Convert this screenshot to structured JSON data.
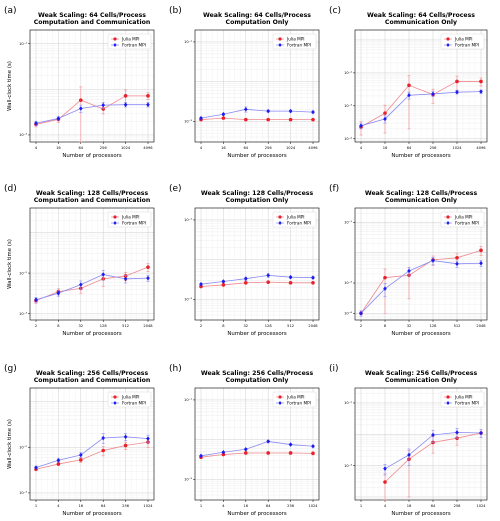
{
  "chart_data": [
    {
      "type": "line",
      "letter": "(a)",
      "title": [
        "Weak Scaling: 64 Cells/Process",
        "Computation and Communication"
      ],
      "xlabel": "Number of processors",
      "ylabel": "Wall-clock time (s)",
      "yscale": "log",
      "ylim": [
        0.0007,
        0.2
      ],
      "yticks": [
        {
          "v": 0.001,
          "label": "10⁻³"
        },
        {
          "v": 0.1,
          "label": "10⁻¹"
        }
      ],
      "x": [
        "4",
        "16",
        "64",
        "256",
        "1024",
        "4096"
      ],
      "grid": true,
      "legend": "top-right",
      "series": [
        {
          "name": "Julia MPI",
          "color": "#e8212b",
          "marker": "circle",
          "values": [
            0.0017,
            0.0022,
            0.0058,
            0.0037,
            0.0072,
            0.0072
          ],
          "errors": [
            0.0002,
            0.0003,
            0.0055,
            0.0008,
            0.0025,
            0.0012
          ]
        },
        {
          "name": "Fortran MPI",
          "color": "#1c1cf0",
          "marker": "diamond",
          "values": [
            0.0018,
            0.0023,
            0.0038,
            0.0045,
            0.0046,
            0.0046
          ],
          "errors": [
            0.0002,
            0.0002,
            0.0007,
            0.0007,
            0.0005,
            0.0005
          ]
        }
      ]
    },
    {
      "type": "line",
      "letter": "(b)",
      "title": [
        "Weak Scaling: 64 Cells/Process",
        "Computation Only"
      ],
      "xlabel": "Number of processors",
      "ylabel": "",
      "yscale": "log",
      "ylim": [
        0.0003,
        0.2
      ],
      "yticks": [
        {
          "v": 0.001,
          "label": "10⁻³"
        },
        {
          "v": 0.1,
          "label": "10⁻¹"
        }
      ],
      "x": [
        "4",
        "16",
        "64",
        "256",
        "1024",
        "4096"
      ],
      "grid": true,
      "legend": "top-right",
      "series": [
        {
          "name": "Julia MPI",
          "color": "#e8212b",
          "marker": "circle",
          "values": [
            0.0011,
            0.0012,
            0.0011,
            0.0011,
            0.0011,
            0.0011
          ],
          "errors": [
            3e-05,
            3e-05,
            3e-05,
            3e-05,
            3e-05,
            3e-05
          ]
        },
        {
          "name": "Fortran MPI",
          "color": "#1c1cf0",
          "marker": "diamond",
          "values": [
            0.0012,
            0.0015,
            0.002,
            0.0018,
            0.0018,
            0.0017
          ],
          "errors": [
            5e-05,
            0.0001,
            0.0003,
            0.0001,
            0.0001,
            0.0001
          ]
        }
      ]
    },
    {
      "type": "line",
      "letter": "(c)",
      "title": [
        "Weak Scaling: 64 Cells/Process",
        "Communication Only"
      ],
      "xlabel": "Number of processors",
      "ylabel": "",
      "yscale": "log",
      "ylim": [
        8e-05,
        0.2
      ],
      "yticks": [
        {
          "v": 0.0001,
          "label": "10⁻⁴"
        },
        {
          "v": 0.001,
          "label": "10⁻³"
        },
        {
          "v": 0.01,
          "label": "10⁻²"
        }
      ],
      "x": [
        "4",
        "16",
        "64",
        "256",
        "1024",
        "4096"
      ],
      "grid": true,
      "legend": "top-right",
      "series": [
        {
          "name": "Julia MPI",
          "color": "#e8212b",
          "marker": "circle",
          "values": [
            0.00023,
            0.0006,
            0.0042,
            0.0022,
            0.0055,
            0.0055
          ],
          "errors": [
            0.0001,
            0.00045,
            0.004,
            0.001,
            0.0025,
            0.0015
          ]
        },
        {
          "name": "Fortran MPI",
          "color": "#1c1cf0",
          "marker": "diamond",
          "values": [
            0.00025,
            0.0004,
            0.0021,
            0.0023,
            0.0026,
            0.0027
          ],
          "errors": [
            5e-05,
            0.0001,
            0.0005,
            0.0004,
            0.0003,
            0.0003
          ]
        }
      ]
    },
    {
      "type": "line",
      "letter": "(d)",
      "title": [
        "Weak Scaling: 128 Cells/Process",
        "Computation and Communication"
      ],
      "xlabel": "Number of processors",
      "ylabel": "Wall-clock time (s)",
      "yscale": "log",
      "ylim": [
        0.0007,
        0.4
      ],
      "yticks": [
        {
          "v": 0.001,
          "label": "10⁻³"
        },
        {
          "v": 0.01,
          "label": "10⁻²"
        }
      ],
      "x": [
        "2",
        "8",
        "32",
        "128",
        "512",
        "2048"
      ],
      "grid": true,
      "legend": "top-right",
      "series": [
        {
          "name": "Julia MPI",
          "color": "#e8212b",
          "marker": "circle",
          "values": [
            0.0021,
            0.0035,
            0.0042,
            0.0072,
            0.0085,
            0.014
          ],
          "errors": [
            0.0003,
            0.0006,
            0.001,
            0.0025,
            0.002,
            0.003
          ]
        },
        {
          "name": "Fortran MPI",
          "color": "#1c1cf0",
          "marker": "diamond",
          "values": [
            0.0022,
            0.0032,
            0.0052,
            0.0092,
            0.0072,
            0.0075
          ],
          "errors": [
            0.0003,
            0.0005,
            0.0012,
            0.0025,
            0.0015,
            0.0012
          ]
        }
      ]
    },
    {
      "type": "line",
      "letter": "(e)",
      "title": [
        "Weak Scaling: 128 Cells/Process",
        "Computation Only"
      ],
      "xlabel": "Number of processors",
      "ylabel": "",
      "yscale": "log",
      "ylim": [
        0.0003,
        0.2
      ],
      "yticks": [
        {
          "v": 0.001,
          "label": "10⁻³"
        },
        {
          "v": 0.1,
          "label": "10⁻¹"
        }
      ],
      "x": [
        "2",
        "8",
        "32",
        "128",
        "512",
        "2048"
      ],
      "grid": true,
      "legend": "top-right",
      "series": [
        {
          "name": "Julia MPI",
          "color": "#e8212b",
          "marker": "circle",
          "values": [
            0.0021,
            0.0023,
            0.0026,
            0.0027,
            0.0026,
            0.0026
          ],
          "errors": [
            5e-05,
            5e-05,
            5e-05,
            5e-05,
            5e-05,
            5e-05
          ]
        },
        {
          "name": "Fortran MPI",
          "color": "#1c1cf0",
          "marker": "diamond",
          "values": [
            0.0024,
            0.0028,
            0.0033,
            0.004,
            0.0036,
            0.0035
          ],
          "errors": [
            0.0001,
            0.0002,
            0.0003,
            0.0004,
            0.0002,
            0.0002
          ]
        }
      ]
    },
    {
      "type": "line",
      "letter": "(f)",
      "title": [
        "Weak Scaling: 128 Cells/Process",
        "Communication Only"
      ],
      "xlabel": "Number of processors",
      "ylabel": "",
      "yscale": "log",
      "ylim": [
        6e-05,
        0.3
      ],
      "yticks": [
        {
          "v": 0.0001,
          "label": "10⁻⁴"
        },
        {
          "v": 0.001,
          "label": "10⁻³"
        },
        {
          "v": 0.1,
          "label": "10⁻¹"
        }
      ],
      "x": [
        "2",
        "8",
        "32",
        "128",
        "512",
        "2048"
      ],
      "grid": true,
      "legend": "top-right",
      "series": [
        {
          "name": "Julia MPI",
          "color": "#e8212b",
          "marker": "circle",
          "values": [
            0.0001,
            0.0015,
            0.0018,
            0.0058,
            0.0068,
            0.012
          ],
          "errors": [
            2e-05,
            0.0014,
            0.0015,
            0.002,
            0.0025,
            0.004
          ]
        },
        {
          "name": "Fortran MPI",
          "color": "#1c1cf0",
          "marker": "diamond",
          "values": [
            0.0001,
            0.00065,
            0.0025,
            0.0055,
            0.0043,
            0.0045
          ],
          "errors": [
            2e-05,
            0.0003,
            0.0008,
            0.0015,
            0.001,
            0.001
          ]
        }
      ]
    },
    {
      "type": "line",
      "letter": "(g)",
      "title": [
        "Weak Scaling: 256 Cells/Process",
        "Computation and Communication"
      ],
      "xlabel": "Number of processors",
      "ylabel": "Wall-clock time (s)",
      "yscale": "log",
      "ylim": [
        0.0007,
        0.2
      ],
      "yticks": [
        {
          "v": 0.001,
          "label": "10⁻³"
        },
        {
          "v": 0.01,
          "label": "10⁻²"
        }
      ],
      "x": [
        "1",
        "4",
        "16",
        "64",
        "256",
        "1024"
      ],
      "grid": true,
      "legend": "top-right",
      "series": [
        {
          "name": "Julia MPI",
          "color": "#e8212b",
          "marker": "circle",
          "values": [
            0.0033,
            0.0043,
            0.0053,
            0.0085,
            0.011,
            0.013
          ],
          "errors": [
            0.0002,
            0.0003,
            0.0006,
            0.002,
            0.002,
            0.003
          ]
        },
        {
          "name": "Fortran MPI",
          "color": "#1c1cf0",
          "marker": "diamond",
          "values": [
            0.0036,
            0.0052,
            0.0068,
            0.016,
            0.017,
            0.0155
          ],
          "errors": [
            0.0002,
            0.0004,
            0.0008,
            0.004,
            0.003,
            0.003
          ]
        }
      ]
    },
    {
      "type": "line",
      "letter": "(h)",
      "title": [
        "Weak Scaling: 256 Cells/Process",
        "Computation Only"
      ],
      "xlabel": "Number of processors",
      "ylabel": "",
      "yscale": "log",
      "ylim": [
        0.0003,
        0.2
      ],
      "yticks": [
        {
          "v": 0.001,
          "label": "10⁻³"
        },
        {
          "v": 0.1,
          "label": "10⁻¹"
        }
      ],
      "x": [
        "1",
        "4",
        "16",
        "64",
        "256",
        "1024"
      ],
      "grid": true,
      "legend": "top-right",
      "series": [
        {
          "name": "Julia MPI",
          "color": "#e8212b",
          "marker": "circle",
          "values": [
            0.0036,
            0.0042,
            0.0046,
            0.0046,
            0.0046,
            0.0045
          ],
          "errors": [
            0.0001,
            0.0001,
            0.0001,
            0.0001,
            0.0001,
            0.0001
          ]
        },
        {
          "name": "Fortran MPI",
          "color": "#1c1cf0",
          "marker": "diamond",
          "values": [
            0.0039,
            0.0048,
            0.0057,
            0.009,
            0.0075,
            0.0068
          ],
          "errors": [
            0.0001,
            0.0002,
            0.0003,
            0.0005,
            0.0003,
            0.0003
          ]
        }
      ]
    },
    {
      "type": "line",
      "letter": "(i)",
      "title": [
        "Weak Scaling: 256 Cells/Process",
        "Communication Only"
      ],
      "xlabel": "Number of processors",
      "ylabel": "",
      "yscale": "log",
      "ylim": [
        8e-05,
        0.3
      ],
      "yticks": [
        {
          "v": 0.001,
          "label": "10⁻³"
        },
        {
          "v": 0.1,
          "label": "10⁻¹"
        }
      ],
      "x": [
        "1",
        "4",
        "16",
        "64",
        "256",
        "1024"
      ],
      "grid": true,
      "legend": "top-right",
      "series": [
        {
          "name": "Julia MPI",
          "color": "#e8212b",
          "marker": "circle",
          "values": [
            null,
            0.0003,
            0.0016,
            0.0055,
            0.0075,
            0.011
          ],
          "errors": [
            0,
            0.00025,
            0.0015,
            0.003,
            0.003,
            0.003
          ]
        },
        {
          "name": "Fortran MPI",
          "color": "#1c1cf0",
          "marker": "diamond",
          "values": [
            null,
            0.0008,
            0.0022,
            0.0095,
            0.0115,
            0.011
          ],
          "errors": [
            0,
            0.0003,
            0.0012,
            0.004,
            0.004,
            0.003
          ]
        }
      ]
    }
  ]
}
